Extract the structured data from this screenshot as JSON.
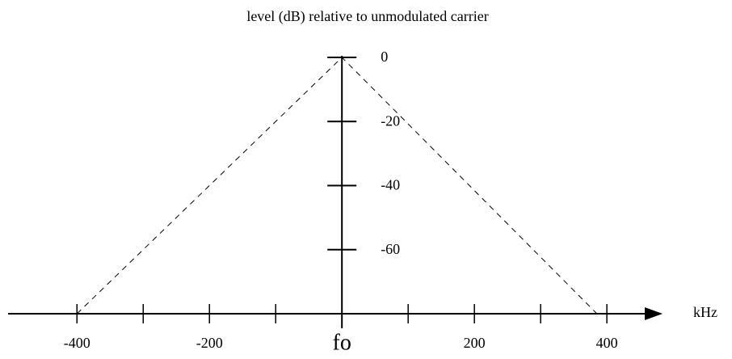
{
  "chart_data": {
    "type": "line",
    "title": "level (dB) relative to unmodulated carrier",
    "x_label": "kHz",
    "series": [
      {
        "color": "#000000",
        "dashed": true,
        "x": [
          -400,
          0,
          385
        ],
        "values": [
          -80,
          0,
          -80
        ]
      }
    ],
    "xlim": [
      -504,
      484
    ],
    "xticks": [
      {
        "value": -400,
        "label": "-400"
      },
      -300,
      {
        "value": -200,
        "label": "-200"
      },
      -100,
      {
        "value": 0,
        "label": "fo"
      },
      100,
      200,
      300,
      400
    ],
    "xtick_labeled": [
      true,
      false,
      true,
      false,
      true,
      false,
      true,
      false,
      true
    ],
    "ylim": [
      -80,
      0
    ],
    "yticks": [
      0,
      -20,
      -40,
      -60
    ],
    "grid": false
  }
}
